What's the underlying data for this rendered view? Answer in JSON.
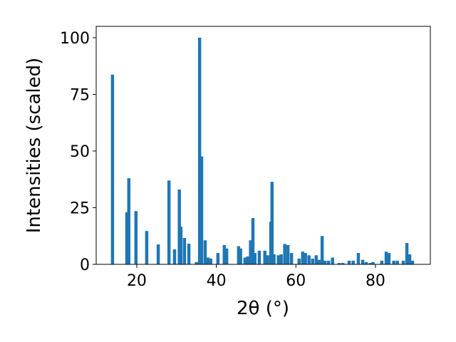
{
  "chart_data": {
    "type": "bar",
    "xlabel": "2θ (°)",
    "ylabel": "Intensities (scaled)",
    "x": [
      13.9,
      17.5,
      18.0,
      19.8,
      22.5,
      25.4,
      28.1,
      29.5,
      30.7,
      31.1,
      32.0,
      33.1,
      35.0,
      35.8,
      36.3,
      37.2,
      37.9,
      38.6,
      40.4,
      42.0,
      42.6,
      45.6,
      46.1,
      47.2,
      47.9,
      48.6,
      49.2,
      49.7,
      50.8,
      52.2,
      52.9,
      53.7,
      54.0,
      54.5,
      55.6,
      56.3,
      57.2,
      58.0,
      58.9,
      60.8,
      61.7,
      62.4,
      63.3,
      64.2,
      65.1,
      65.8,
      66.6,
      67.3,
      68.2,
      69.2,
      70.9,
      71.8,
      73.4,
      74.4,
      75.7,
      76.8,
      77.7,
      78.7,
      79.4,
      81.6,
      82.7,
      83.4,
      84.6,
      85.5,
      87.0,
      87.9,
      88.6,
      89.3
    ],
    "values": [
      83.7,
      23,
      38,
      23.5,
      14.7,
      8.8,
      37,
      6.6,
      33,
      16.6,
      11.6,
      9.1,
      1,
      100,
      47.6,
      10.6,
      3,
      2.5,
      5,
      8.5,
      7,
      8,
      7,
      3,
      3.5,
      10.6,
      20.4,
      5,
      6,
      6,
      4,
      18.8,
      36.4,
      4.4,
      4,
      4.4,
      9,
      8.5,
      5,
      2.5,
      5.6,
      5,
      4,
      2.5,
      4,
      2,
      12.5,
      1.6,
      1.6,
      3,
      0.6,
      0.6,
      1.6,
      1.6,
      5,
      2,
      1,
      0.6,
      1,
      1.6,
      5.6,
      5,
      1.6,
      1.6,
      1.6,
      9.4,
      4.4,
      1.6
    ],
    "color": "#1f77b4",
    "xlim": [
      9.8,
      93.8
    ],
    "ylim": [
      0,
      105
    ],
    "xticks": [
      20,
      40,
      60,
      80
    ],
    "yticks": [
      0,
      25,
      50,
      75,
      100
    ]
  }
}
